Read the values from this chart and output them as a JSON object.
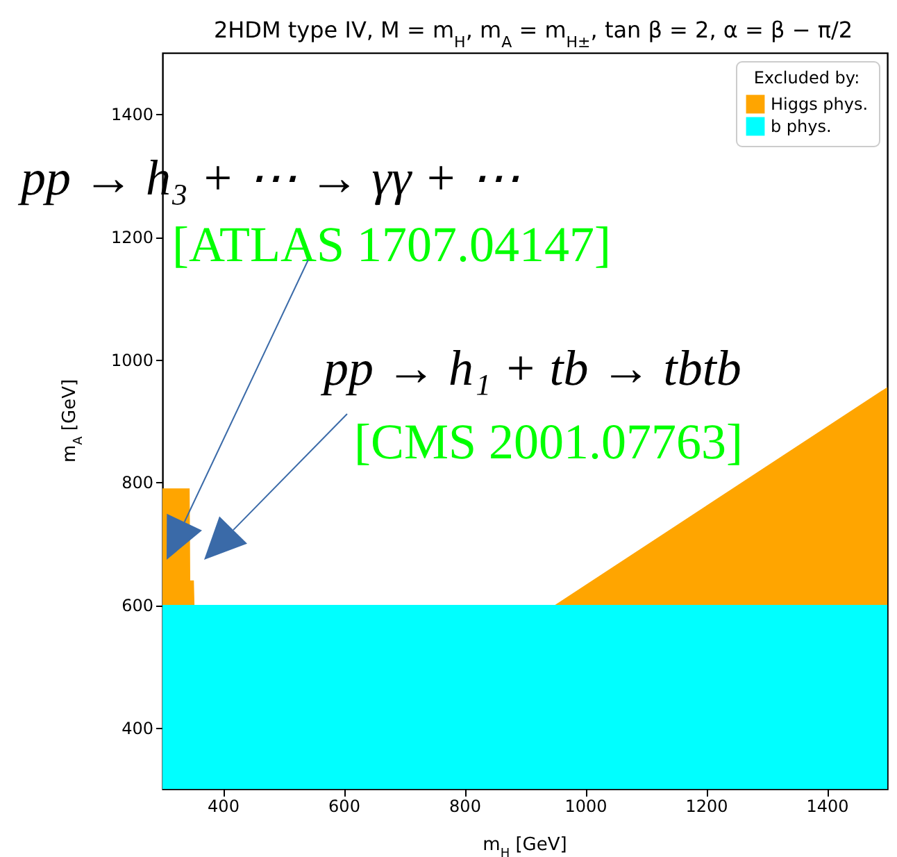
{
  "chart_data": {
    "type": "area",
    "title": "2HDM type IV, M = m$_{H}$, m$_{A}$ = m$_{H±}$, tan β = 2, α = β − π/2",
    "xlabel": "m$_{H}$ [GeV]",
    "ylabel": "m$_{A}$ [GeV]",
    "legend_title": "Excluded by:",
    "legend": "top right",
    "x": [
      300,
      345,
      346,
      352,
      353,
      950,
      1500
    ],
    "series": [
      {
        "name": "Higgs phys.",
        "color": "#ffa500",
        "values": [
          790,
          790,
          640,
          640,
          600,
          600,
          955
        ]
      },
      {
        "name": "b phys.",
        "color": "#00ffff",
        "values": [
          600,
          600,
          600,
          600,
          600,
          600,
          600
        ]
      }
    ],
    "xlim": [
      300,
      1500
    ],
    "ylim": [
      300,
      1500
    ],
    "xticks": [
      400,
      600,
      800,
      1000,
      1200,
      1400
    ],
    "yticks": [
      400,
      600,
      800,
      1000,
      1200,
      1400
    ],
    "annotations": [
      "pp → h₃ + ⋯ → γγ + ⋯",
      "[ATLAS 1707.04147]",
      "pp → h₁ + tb → tbtb",
      "[CMS 2001.07763]"
    ]
  }
}
